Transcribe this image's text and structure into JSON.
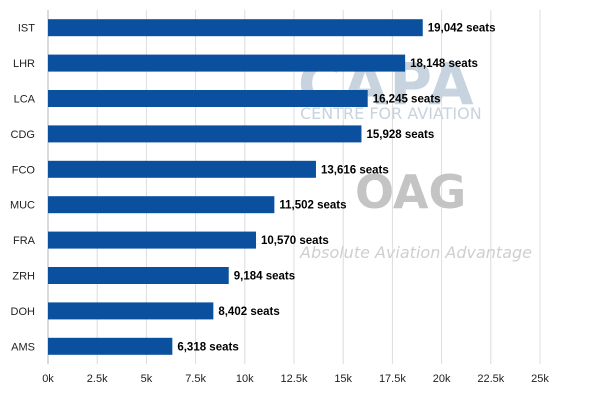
{
  "chart_data": {
    "type": "bar",
    "orientation": "horizontal",
    "categories": [
      "IST",
      "LHR",
      "LCA",
      "CDG",
      "FCO",
      "MUC",
      "FRA",
      "ZRH",
      "DOH",
      "AMS"
    ],
    "values": [
      19042,
      18148,
      16245,
      15928,
      13616,
      11502,
      10570,
      9184,
      8402,
      6318
    ],
    "data_labels": [
      "19,042 seats",
      "18,148 seats",
      "16,245 seats",
      "15,928 seats",
      "13,616 seats",
      "11,502 seats",
      "10,570 seats",
      "9,184 seats",
      "8,402 seats",
      "6,318 seats"
    ],
    "x_ticks": [
      0,
      2500,
      5000,
      7500,
      10000,
      12500,
      15000,
      17500,
      20000,
      22500,
      25000
    ],
    "x_tick_labels": [
      "0k",
      "2.5k",
      "5k",
      "7.5k",
      "10k",
      "12.5k",
      "15k",
      "17.5k",
      "20k",
      "22.5k",
      "25k"
    ],
    "xlim": [
      0,
      25000
    ],
    "title": "",
    "xlabel": "",
    "ylabel": "",
    "grid": "vertical",
    "bar_color": "#0b4f9f"
  },
  "watermark": {
    "logo_main": "CAPA",
    "logo_sub": "CENTRE FOR AVIATION",
    "partner_logo": "OAG",
    "partner_tagline": "Absolute Aviation Advantage"
  }
}
